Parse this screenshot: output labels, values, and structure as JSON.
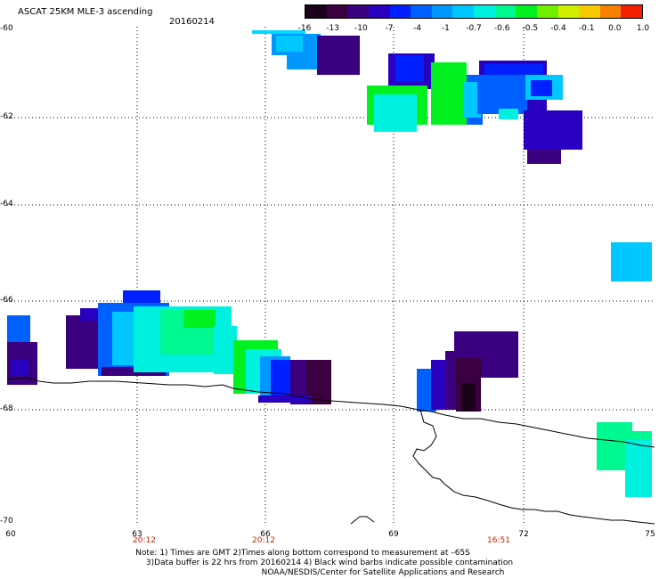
{
  "title": "ASCAT 25KM MLE-3 ascending",
  "date": "20160214",
  "colorbar": {
    "labels": [
      "-16",
      "-13",
      "-10",
      "-7",
      "-4",
      "-1",
      "-0.7",
      "-0.6",
      "-0.5",
      "-0.4",
      "-0.1",
      "0.0",
      "1.0"
    ],
    "colors": [
      "#1a001a",
      "#3a0040",
      "#3b0080",
      "#2a00c0",
      "#0020ff",
      "#0060ff",
      "#0098ff",
      "#00c8ff",
      "#00f0e0",
      "#00f890",
      "#00f020",
      "#70f000",
      "#d0f000",
      "#f8c800",
      "#f88000",
      "#f02000"
    ]
  },
  "axes": {
    "y_ticks": [
      "-60",
      "-62",
      "-64",
      "-66",
      "-68",
      "-70"
    ],
    "x_ticks": [
      "60",
      "63",
      "66",
      "69",
      "72",
      "75"
    ],
    "times": [
      "20:12",
      "20:12",
      "16:51"
    ]
  },
  "notes": {
    "line1": "Note: 1) Times are GMT 2)Times along bottom correspond to measurement at –65S",
    "line2": "3)Data buffer is 22 hrs from 20160214 4) Black wind barbs indicate possible contamination",
    "line3": "NOAA/NESDIS/Center for Satellite Applications and Research"
  }
}
